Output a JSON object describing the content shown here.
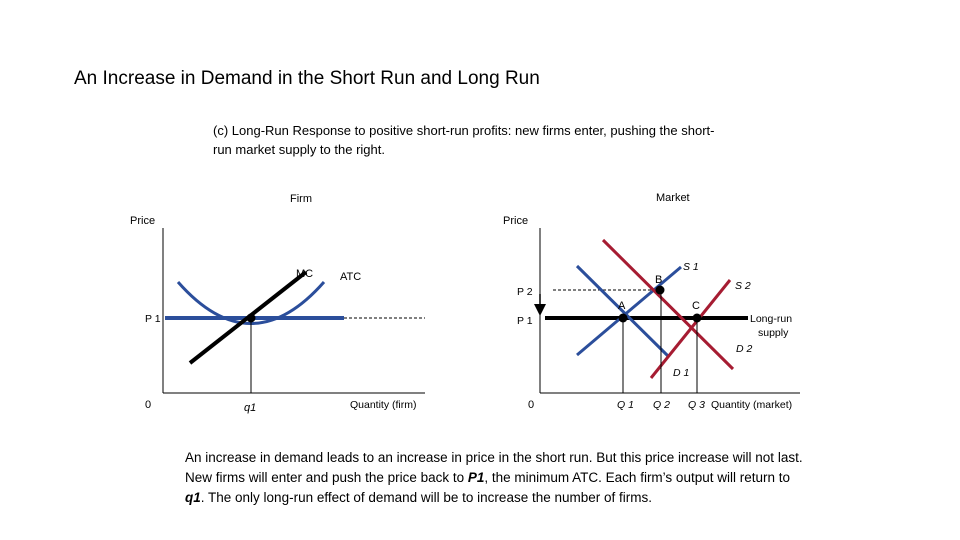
{
  "title": "An Increase in Demand in the Short Run and Long Run",
  "subtitle": "(c) Long-Run Response to positive short-run profits: new firms enter, pushing the short-run market supply to the right.",
  "firm": {
    "panel_label": "Firm",
    "y_axis": "Price",
    "x_axis": "Quantity (firm)",
    "origin": "0",
    "mc_label": "MC",
    "atc_label": "ATC",
    "p1_label": "P 1",
    "q1_label": "q1"
  },
  "market": {
    "panel_label": "Market",
    "y_axis": "Price",
    "x_axis": "Quantity (market)",
    "origin": "0",
    "p2_label": "P 2",
    "p1_label": "P 1",
    "s1_label": "S 1",
    "s2_label": "S 2",
    "d1_label": "D 1",
    "d2_label": "D 2",
    "point_a": "A",
    "point_b": "B",
    "point_c": "C",
    "q1_label": "Q 1",
    "q2_label": "Q 2",
    "q3_label": "Q 3",
    "lr_supply_line1": "Long-run",
    "lr_supply_line2": "supply"
  },
  "caption": {
    "part1": "An increase in demand leads to an increase in price in the short run. But this price increase will not last. New firms will enter and push the price back to ",
    "p1": "P1",
    "part2": ", the minimum ATC. Each firm’s output will return to ",
    "q1": "q1",
    "part3": ". The only long-run effect of demand will be to increase the number of firms."
  },
  "colors": {
    "blue": "#2b4e9b",
    "red": "#a61c32",
    "black": "#000000"
  }
}
